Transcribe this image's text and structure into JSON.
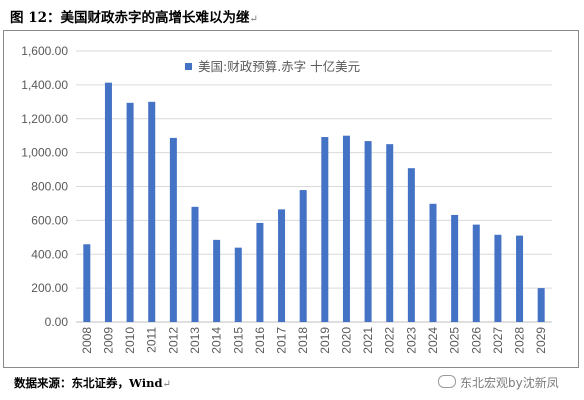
{
  "title": "图 12：美国财政赤字的高增长难以为继",
  "paragraph_mark": "↵",
  "source": "数据来源：东北证券，Wind",
  "watermark": "东北宏观by沈新凤",
  "colors": {
    "bar": "#4472c4",
    "grid": "#d9d9d9",
    "axis_text": "#595959"
  },
  "chart_data": {
    "type": "bar",
    "title": "",
    "xlabel": "",
    "ylabel": "",
    "ylim": [
      0,
      1600
    ],
    "yticks": [
      "0.00",
      "200.00",
      "400.00",
      "600.00",
      "800.00",
      "1,000.00",
      "1,200.00",
      "1,400.00",
      "1,600.00"
    ],
    "grid": true,
    "legend": "top-center",
    "categories": [
      "2008",
      "2009",
      "2010",
      "2011",
      "2012",
      "2013",
      "2014",
      "2015",
      "2016",
      "2017",
      "2018",
      "2019",
      "2020",
      "2021",
      "2022",
      "2023",
      "2024",
      "2025",
      "2026",
      "2027",
      "2028",
      "2029"
    ],
    "series": [
      {
        "name": "美国:财政预算.赤字 十亿美元",
        "values": [
          459,
          1413,
          1294,
          1300,
          1087,
          680,
          485,
          439,
          585,
          665,
          779,
          1092,
          1100,
          1068,
          1050,
          908,
          698,
          632,
          575,
          515,
          510,
          200
        ]
      }
    ]
  }
}
